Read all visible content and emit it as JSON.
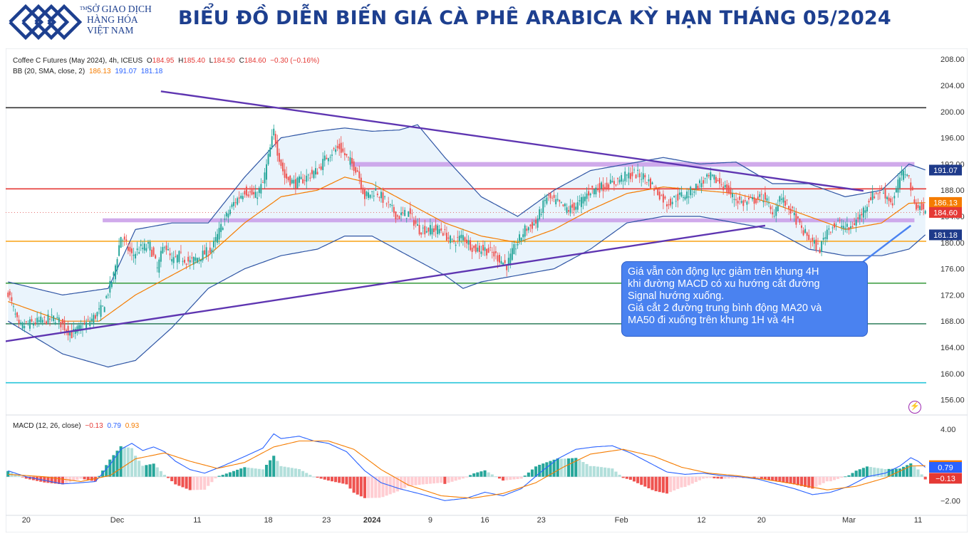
{
  "header": {
    "org_lines": [
      "SỞ GIAO DỊCH",
      "HÀNG HÓA",
      "VIỆT NAM"
    ],
    "org_tm": "TM",
    "title": "BIỂU ĐỒ DIỄN BIẾN GIÁ CÀ PHÊ ARABICA KỲ HẠN THÁNG 05/2024",
    "brand_color": "#1d3f8f"
  },
  "legend": {
    "symbol": "Coffee C Futures (May 2024), 4h, ICEUS",
    "o_label": "O",
    "o_value": "184.95",
    "h_label": "H",
    "h_value": "185.40",
    "l_label": "L",
    "l_value": "184.50",
    "c_label": "C",
    "c_value": "184.60",
    "change": "−0.30 (−0.16%)",
    "bb_label": "BB (20, SMA, close, 2)",
    "bb_mid": "186.13",
    "bb_upper": "191.07",
    "bb_lower": "181.18",
    "macd_label": "MACD (12, 26, close)",
    "macd_hist": "−0.13",
    "macd_line": "0.79",
    "macd_signal": "0.93"
  },
  "callout": {
    "lines": [
      " Giá vẫn còn động lực giảm trên khung 4H",
      "khi đường MACD có xu hướng cắt đường",
      "Signal hướng xuống.",
      "Giá cắt 2 đường trung bình động MA20 và",
      "MA50 đi xuống trên khung 1H và 4H"
    ]
  },
  "flash_icon": "lightning-icon",
  "chart_data": [
    {
      "type": "candlestick",
      "title": "Coffee C Futures (May 2024), 4h, ICEUS",
      "ylim": [
        154,
        209
      ],
      "y_ticks": [
        "208.00",
        "204.00",
        "200.00",
        "196.00",
        "192.00",
        "188.00",
        "184.00",
        "180.00",
        "176.00",
        "172.00",
        "168.00",
        "164.00",
        "160.00",
        "156.00"
      ],
      "x_ticks": [
        "20",
        "Dec",
        "11",
        "18",
        "23",
        "2024",
        "9",
        "16",
        "23",
        "Feb",
        "12",
        "20",
        "Mar",
        "11"
      ],
      "x_tick_idx": [
        10,
        60,
        104,
        143,
        175,
        200,
        232,
        262,
        293,
        337,
        381,
        414,
        462,
        500
      ],
      "n_bars": 505,
      "close_anchors": [
        [
          0,
          172.5
        ],
        [
          6,
          167
        ],
        [
          10,
          167.5
        ],
        [
          18,
          168
        ],
        [
          26,
          168.5
        ],
        [
          35,
          166
        ],
        [
          45,
          168
        ],
        [
          52,
          170
        ],
        [
          58,
          175
        ],
        [
          62,
          181
        ],
        [
          68,
          178
        ],
        [
          72,
          179
        ],
        [
          78,
          179.5
        ],
        [
          82,
          176
        ],
        [
          86,
          180
        ],
        [
          90,
          177
        ],
        [
          94,
          178
        ],
        [
          100,
          177
        ],
        [
          106,
          178
        ],
        [
          112,
          179
        ],
        [
          118,
          183
        ],
        [
          124,
          186
        ],
        [
          130,
          188
        ],
        [
          136,
          187
        ],
        [
          140,
          189
        ],
        [
          146,
          197
        ],
        [
          148,
          194
        ],
        [
          152,
          190
        ],
        [
          158,
          189
        ],
        [
          164,
          190
        ],
        [
          170,
          191
        ],
        [
          176,
          193.5
        ],
        [
          182,
          194.5
        ],
        [
          186,
          193
        ],
        [
          192,
          191
        ],
        [
          196,
          187
        ],
        [
          202,
          188
        ],
        [
          208,
          186
        ],
        [
          214,
          184
        ],
        [
          220,
          184.5
        ],
        [
          226,
          182
        ],
        [
          232,
          182
        ],
        [
          238,
          182
        ],
        [
          244,
          180
        ],
        [
          250,
          181
        ],
        [
          256,
          179
        ],
        [
          262,
          179
        ],
        [
          268,
          178
        ],
        [
          274,
          176.5
        ],
        [
          278,
          179
        ],
        [
          284,
          182
        ],
        [
          290,
          183
        ],
        [
          296,
          187
        ],
        [
          302,
          186
        ],
        [
          308,
          185
        ],
        [
          314,
          186
        ],
        [
          320,
          188
        ],
        [
          326,
          188.5
        ],
        [
          332,
          189
        ],
        [
          338,
          190
        ],
        [
          344,
          190.5
        ],
        [
          350,
          190
        ],
        [
          356,
          188
        ],
        [
          362,
          186
        ],
        [
          368,
          187
        ],
        [
          374,
          187.5
        ],
        [
          380,
          189
        ],
        [
          386,
          190
        ],
        [
          392,
          189
        ],
        [
          398,
          187
        ],
        [
          404,
          186
        ],
        [
          410,
          186.5
        ],
        [
          416,
          187
        ],
        [
          420,
          184
        ],
        [
          424,
          187
        ],
        [
          430,
          185
        ],
        [
          436,
          182
        ],
        [
          442,
          180
        ],
        [
          446,
          179
        ],
        [
          450,
          182
        ],
        [
          456,
          183
        ],
        [
          462,
          182
        ],
        [
          468,
          184
        ],
        [
          474,
          187
        ],
        [
          480,
          188
        ],
        [
          486,
          186
        ],
        [
          490,
          190
        ],
        [
          494,
          191
        ],
        [
          498,
          186
        ],
        [
          502,
          185.2
        ],
        [
          504,
          184.6
        ]
      ],
      "bb_mid_anchors": [
        [
          0,
          171
        ],
        [
          30,
          168
        ],
        [
          50,
          168
        ],
        [
          70,
          172
        ],
        [
          90,
          175
        ],
        [
          110,
          178
        ],
        [
          130,
          183
        ],
        [
          150,
          187
        ],
        [
          170,
          188
        ],
        [
          185,
          190
        ],
        [
          200,
          189
        ],
        [
          220,
          186
        ],
        [
          240,
          183
        ],
        [
          260,
          181
        ],
        [
          280,
          180
        ],
        [
          300,
          182
        ],
        [
          320,
          185
        ],
        [
          340,
          187.5
        ],
        [
          360,
          188.5
        ],
        [
          380,
          188
        ],
        [
          400,
          187.5
        ],
        [
          420,
          186
        ],
        [
          440,
          184
        ],
        [
          460,
          182
        ],
        [
          480,
          183
        ],
        [
          495,
          186
        ],
        [
          504,
          186.1
        ]
      ],
      "bb_upper_anchors": [
        [
          0,
          174
        ],
        [
          30,
          172
        ],
        [
          55,
          173
        ],
        [
          70,
          182
        ],
        [
          90,
          183
        ],
        [
          110,
          183
        ],
        [
          130,
          190
        ],
        [
          150,
          196
        ],
        [
          170,
          197
        ],
        [
          185,
          197.5
        ],
        [
          200,
          197
        ],
        [
          215,
          197.2
        ],
        [
          225,
          198
        ],
        [
          240,
          193
        ],
        [
          260,
          187
        ],
        [
          280,
          184
        ],
        [
          300,
          188
        ],
        [
          320,
          191
        ],
        [
          340,
          192
        ],
        [
          360,
          193
        ],
        [
          380,
          192
        ],
        [
          400,
          192.3
        ],
        [
          420,
          189
        ],
        [
          440,
          189
        ],
        [
          460,
          187
        ],
        [
          480,
          188
        ],
        [
          495,
          192
        ],
        [
          504,
          191.1
        ]
      ],
      "bb_lower_anchors": [
        [
          0,
          168
        ],
        [
          30,
          163
        ],
        [
          55,
          161
        ],
        [
          70,
          162
        ],
        [
          90,
          167
        ],
        [
          110,
          173
        ],
        [
          130,
          176
        ],
        [
          150,
          178
        ],
        [
          170,
          179
        ],
        [
          185,
          181
        ],
        [
          200,
          181
        ],
        [
          220,
          178
        ],
        [
          240,
          175
        ],
        [
          250,
          173
        ],
        [
          260,
          174
        ],
        [
          280,
          175
        ],
        [
          300,
          176
        ],
        [
          320,
          179
        ],
        [
          340,
          183
        ],
        [
          360,
          184
        ],
        [
          380,
          184
        ],
        [
          400,
          183
        ],
        [
          420,
          182
        ],
        [
          440,
          179
        ],
        [
          460,
          178
        ],
        [
          480,
          178
        ],
        [
          495,
          179
        ],
        [
          504,
          181.2
        ]
      ],
      "horizontal_levels": [
        {
          "value": 200.6,
          "color": "#333333"
        },
        {
          "value": 188.2,
          "color": "#e53935"
        },
        {
          "value": 180.2,
          "color": "#f9a825"
        },
        {
          "value": 173.8,
          "color": "#43a047"
        },
        {
          "value": 167.6,
          "color": "#2e7d5b"
        },
        {
          "value": 158.6,
          "color": "#26c6da"
        }
      ],
      "zones": [
        {
          "x0": 188,
          "x1": 498,
          "y0": 191.6,
          "y1": 192.3
        },
        {
          "x0": 52,
          "x1": 498,
          "y0": 183.1,
          "y1": 183.7
        }
      ],
      "trendlines": [
        {
          "from": [
            -2,
            164.9
          ],
          "to": [
            416,
            182.6
          ],
          "color": "#5e35b1"
        },
        {
          "from": [
            84,
            203.1
          ],
          "to": [
            470,
            187.9
          ],
          "color": "#5e35b1"
        },
        {
          "from": [
            496,
            182.6
          ],
          "to": [
            460,
            175
          ],
          "color": "#4a82f0"
        }
      ],
      "price_tags": [
        {
          "value": "191.07",
          "y": 191.07,
          "bg": "#1e3a8a",
          "fg": "#ffffff"
        },
        {
          "value": "186.13",
          "y": 186.13,
          "bg": "#f57c00",
          "fg": "#ffffff"
        },
        {
          "value": "184.60",
          "y": 184.6,
          "bg": "#e53935",
          "fg": "#ffffff"
        },
        {
          "value": "181.18",
          "y": 181.18,
          "bg": "#1e3a8a",
          "fg": "#ffffff"
        }
      ],
      "up_color": "#26a69a",
      "down_color": "#ef5350"
    },
    {
      "type": "macd",
      "title": "MACD (12, 26, close)",
      "ylim": [
        -3,
        5
      ],
      "y_ticks": [
        "4.00",
        "−2.00"
      ],
      "y_tick_values": [
        4,
        -2
      ],
      "macd_anchors": [
        [
          0,
          0.5
        ],
        [
          10,
          0
        ],
        [
          20,
          -0.3
        ],
        [
          30,
          -0.6
        ],
        [
          40,
          -0.5
        ],
        [
          48,
          -0.4
        ],
        [
          56,
          1
        ],
        [
          62,
          2.3
        ],
        [
          68,
          2.8
        ],
        [
          74,
          2.2
        ],
        [
          80,
          2.5
        ],
        [
          86,
          2.1
        ],
        [
          92,
          1.3
        ],
        [
          100,
          0.6
        ],
        [
          108,
          0.3
        ],
        [
          118,
          0.9
        ],
        [
          130,
          1.7
        ],
        [
          140,
          2.4
        ],
        [
          146,
          3.6
        ],
        [
          150,
          3.2
        ],
        [
          160,
          3.4
        ],
        [
          168,
          3
        ],
        [
          176,
          2.8
        ],
        [
          186,
          2.1
        ],
        [
          196,
          0.5
        ],
        [
          205,
          -0.5
        ],
        [
          215,
          -1
        ],
        [
          228,
          -1.5
        ],
        [
          240,
          -2
        ],
        [
          252,
          -1.8
        ],
        [
          262,
          -1.3
        ],
        [
          272,
          -1.6
        ],
        [
          282,
          -1
        ],
        [
          292,
          0.3
        ],
        [
          302,
          1.5
        ],
        [
          312,
          2.3
        ],
        [
          322,
          2.5
        ],
        [
          332,
          2.6
        ],
        [
          342,
          2
        ],
        [
          352,
          1.2
        ],
        [
          362,
          0.4
        ],
        [
          372,
          0.2
        ],
        [
          382,
          0.3
        ],
        [
          392,
          0.1
        ],
        [
          402,
          0
        ],
        [
          412,
          -0.2
        ],
        [
          422,
          -0.6
        ],
        [
          432,
          -1
        ],
        [
          442,
          -1.5
        ],
        [
          452,
          -1.3
        ],
        [
          462,
          -0.8
        ],
        [
          472,
          0
        ],
        [
          482,
          0.3
        ],
        [
          490,
          0.9
        ],
        [
          496,
          1.6
        ],
        [
          500,
          1.3
        ],
        [
          504,
          0.79
        ]
      ],
      "signal_anchors": [
        [
          0,
          0.2
        ],
        [
          20,
          0
        ],
        [
          40,
          -0.4
        ],
        [
          56,
          0.1
        ],
        [
          70,
          1.5
        ],
        [
          86,
          2
        ],
        [
          100,
          1.3
        ],
        [
          115,
          0.7
        ],
        [
          130,
          1.2
        ],
        [
          146,
          2.5
        ],
        [
          160,
          3
        ],
        [
          176,
          3
        ],
        [
          190,
          2.3
        ],
        [
          205,
          0.6
        ],
        [
          220,
          -0.7
        ],
        [
          238,
          -1.6
        ],
        [
          255,
          -1.8
        ],
        [
          272,
          -1.4
        ],
        [
          290,
          -0.5
        ],
        [
          305,
          0.8
        ],
        [
          320,
          1.9
        ],
        [
          338,
          2.3
        ],
        [
          355,
          1.7
        ],
        [
          370,
          0.8
        ],
        [
          385,
          0.3
        ],
        [
          400,
          0.1
        ],
        [
          415,
          -0.2
        ],
        [
          432,
          -0.6
        ],
        [
          450,
          -1.1
        ],
        [
          466,
          -0.8
        ],
        [
          482,
          -0.1
        ],
        [
          496,
          0.9
        ],
        [
          504,
          0.93
        ]
      ],
      "price_tags": [
        {
          "value": "0.93",
          "y": 0.93,
          "bg": "#f57c00",
          "fg": "#ffffff"
        },
        {
          "value": "0.79",
          "y": 0.79,
          "bg": "#2962ff",
          "fg": "#ffffff"
        },
        {
          "value": "−0.13",
          "y": -0.13,
          "bg": "#e53935",
          "fg": "#ffffff"
        }
      ]
    }
  ]
}
